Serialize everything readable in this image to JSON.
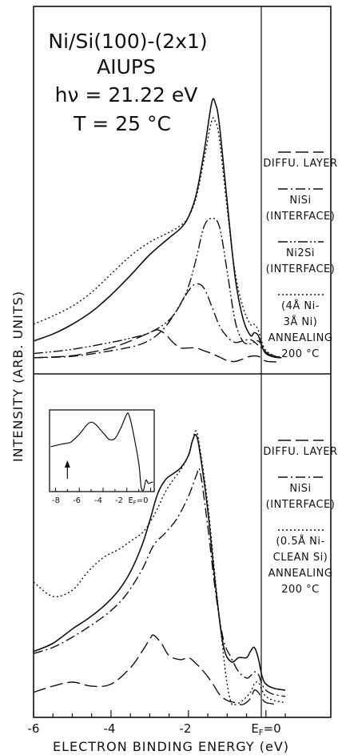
{
  "chart_data": [
    {
      "type": "line",
      "panel": "top",
      "title_lines": [
        "Ni/Si(100)-(2x1)",
        "AIUPS",
        "hν = 21.22 eV",
        "T = 25 °C"
      ],
      "legend": [
        {
          "dash": "long-dash",
          "lines": [
            "DIFFU. LAYER"
          ]
        },
        {
          "dash": "dash-dot",
          "lines": [
            "NiSi",
            "(INTERFACE)"
          ]
        },
        {
          "dash": "dash-dot-dot",
          "lines": [
            "Ni2Si",
            "(INTERFACE)"
          ]
        },
        {
          "dash": "dotted",
          "lines": [
            "(4Å Ni-",
            "3Å Ni)",
            "ANNEALING",
            "200 °C"
          ]
        }
      ],
      "series": [
        {
          "style": "solid",
          "x": [
            -6.0,
            -5.5,
            -5.0,
            -4.5,
            -4.0,
            -3.5,
            -3.0,
            -2.5,
            -2.2,
            -2.0,
            -1.8,
            -1.6,
            -1.4,
            -1.3,
            -1.2,
            -1.0,
            -0.8,
            -0.6,
            -0.4,
            -0.3,
            -0.2,
            -0.1,
            0.0,
            0.2,
            0.4
          ],
          "y": [
            1.5,
            2.0,
            2.7,
            3.6,
            4.8,
            6.2,
            7.7,
            8.9,
            9.6,
            10.4,
            12.0,
            15.0,
            18.6,
            18.5,
            17.0,
            11.5,
            6.2,
            3.2,
            1.9,
            2.1,
            1.9,
            1.1,
            0.6,
            0.35,
            0.3
          ]
        },
        {
          "style": "dotted",
          "x": [
            -6.0,
            -5.5,
            -5.0,
            -4.5,
            -4.0,
            -3.5,
            -3.0,
            -2.5,
            -2.2,
            -2.0,
            -1.8,
            -1.6,
            -1.4,
            -1.3,
            -1.2,
            -1.0,
            -0.8,
            -0.6,
            -0.4,
            -0.3,
            -0.2,
            -0.1,
            0.0,
            0.2,
            0.4
          ],
          "y": [
            2.7,
            3.3,
            4.0,
            5.0,
            6.3,
            7.6,
            8.6,
            9.3,
            9.8,
            10.4,
            11.8,
            14.5,
            17.3,
            17.2,
            16.0,
            11.0,
            6.5,
            4.0,
            2.7,
            2.7,
            2.3,
            1.4,
            0.8,
            0.45,
            0.35
          ]
        },
        {
          "style": "dash-dot",
          "x": [
            -6.0,
            -5.0,
            -4.0,
            -3.2,
            -2.7,
            -2.3,
            -2.0,
            -1.8,
            -1.6,
            -1.4,
            -1.2,
            -1.0,
            -0.8,
            -0.6,
            -0.4,
            -0.2,
            0.0,
            0.2,
            0.4
          ],
          "y": [
            0.3,
            0.4,
            0.8,
            1.3,
            2.2,
            3.7,
            5.1,
            5.6,
            5.3,
            4.0,
            2.6,
            1.8,
            1.4,
            1.5,
            1.6,
            1.2,
            0.7,
            0.4,
            0.3
          ]
        },
        {
          "style": "dash-dot-dot",
          "x": [
            -6.0,
            -5.0,
            -4.0,
            -3.5,
            -3.0,
            -2.5,
            -2.2,
            -2.0,
            -1.8,
            -1.6,
            -1.4,
            -1.2,
            -1.0,
            -0.8,
            -0.6,
            -0.4,
            -0.2,
            0.0,
            0.2,
            0.4
          ],
          "y": [
            0.6,
            0.9,
            1.4,
            1.7,
            2.1,
            3.0,
            4.2,
            5.4,
            7.4,
            9.7,
            10.3,
            9.7,
            6.5,
            3.0,
            1.5,
            1.3,
            1.5,
            0.8,
            0.45,
            0.3
          ]
        },
        {
          "style": "long-dash",
          "x": [
            -6.0,
            -5.5,
            -5.0,
            -4.5,
            -4.0,
            -3.5,
            -3.0,
            -2.8,
            -2.6,
            -2.4,
            -2.2,
            -2.0,
            -1.8,
            -1.6,
            -1.4,
            -1.2,
            -1.0,
            -0.8,
            -0.6,
            -0.4,
            -0.2,
            0.0,
            0.3
          ],
          "y": [
            0.3,
            0.35,
            0.45,
            0.7,
            1.0,
            1.5,
            2.1,
            2.3,
            2.0,
            1.4,
            1.0,
            1.0,
            1.0,
            0.8,
            0.6,
            0.35,
            0.1,
            0.03,
            0.2,
            0.4,
            0.4,
            0.05,
            0.0
          ]
        }
      ]
    },
    {
      "type": "line",
      "panel": "bottom",
      "legend": [
        {
          "dash": "long-dash",
          "lines": [
            "DIFFU. LAYER"
          ]
        },
        {
          "dash": "dash-dot",
          "lines": [
            "NiSi",
            "(INTERFACE)"
          ]
        },
        {
          "dash": "dotted",
          "lines": [
            "(0.5Å Ni-",
            "CLEAN Si)",
            "ANNEALING",
            "200 °C"
          ]
        }
      ],
      "inset": {
        "x_tick_labels": [
          "-8",
          "-6",
          "-4",
          "-2",
          "E",
          "F",
          "=0"
        ],
        "x": [
          -8.4,
          -7.5,
          -6.8,
          -6.5,
          -6.0,
          -5.0,
          -4.0,
          -3.5,
          -3.0,
          -2.5,
          -2.0,
          -1.8,
          -1.5,
          -1.0,
          -0.8,
          -0.6,
          -0.4,
          -0.2,
          0.0,
          0.2
        ],
        "y": [
          0.55,
          0.58,
          0.6,
          0.63,
          0.7,
          0.85,
          0.72,
          0.64,
          0.65,
          0.78,
          0.95,
          0.93,
          0.75,
          0.35,
          0.06,
          0.02,
          0.14,
          0.1,
          0.11,
          0.12
        ],
        "arrow_at_x": -7.0
      },
      "series": [
        {
          "style": "solid",
          "x": [
            -6.0,
            -5.5,
            -5.0,
            -4.6,
            -4.2,
            -3.8,
            -3.5,
            -3.2,
            -3.0,
            -2.8,
            -2.6,
            -2.4,
            -2.2,
            -2.0,
            -1.9,
            -1.8,
            -1.7,
            -1.5,
            -1.3,
            -1.1,
            -0.9,
            -0.7,
            -0.5,
            -0.4,
            -0.3,
            -0.2,
            -0.1,
            0.0,
            0.2,
            0.5
          ],
          "y": [
            2.6,
            3.0,
            3.7,
            4.2,
            4.8,
            5.6,
            6.5,
            7.8,
            9.0,
            10.3,
            11.0,
            11.3,
            11.6,
            12.2,
            12.9,
            13.2,
            12.3,
            9.5,
            5.8,
            2.9,
            2.1,
            2.3,
            2.3,
            2.6,
            2.8,
            2.3,
            1.4,
            1.0,
            0.8,
            0.7
          ]
        },
        {
          "style": "dotted",
          "x": [
            -6.0,
            -5.5,
            -5.0,
            -4.6,
            -4.2,
            -3.8,
            -3.5,
            -3.2,
            -3.0,
            -2.8,
            -2.6,
            -2.4,
            -2.2,
            -2.0,
            -1.9,
            -1.8,
            -1.7,
            -1.5,
            -1.3,
            -1.1,
            -1.0,
            -0.9,
            -0.8,
            -0.6,
            -0.4,
            -0.3,
            -0.2,
            -0.1,
            0.0,
            0.2,
            0.5
          ],
          "y": [
            6.0,
            5.3,
            5.6,
            6.5,
            7.2,
            7.6,
            8.0,
            8.4,
            8.9,
            9.6,
            10.4,
            11.0,
            11.5,
            12.2,
            12.9,
            13.4,
            12.5,
            9.8,
            6.0,
            2.5,
            1.0,
            0.1,
            0.0,
            0.2,
            0.6,
            1.0,
            1.1,
            0.7,
            0.4,
            0.2,
            0.1
          ]
        },
        {
          "style": "dash-dot",
          "x": [
            -6.0,
            -5.5,
            -5.0,
            -4.5,
            -4.0,
            -3.6,
            -3.2,
            -2.9,
            -2.6,
            -2.3,
            -2.0,
            -1.8,
            -1.7,
            -1.5,
            -1.3,
            -1.1,
            -0.9,
            -0.7,
            -0.5,
            -0.4,
            -0.3,
            -0.2,
            -0.1,
            0.0,
            0.2,
            0.5
          ],
          "y": [
            2.5,
            2.8,
            3.3,
            3.9,
            4.6,
            5.4,
            6.6,
            7.8,
            8.4,
            9.1,
            10.2,
            11.2,
            11.4,
            8.7,
            5.5,
            3.2,
            2.3,
            1.6,
            1.3,
            1.4,
            1.6,
            1.5,
            1.0,
            0.7,
            0.5,
            0.4
          ]
        },
        {
          "style": "long-dash",
          "x": [
            -6.0,
            -5.5,
            -5.0,
            -4.5,
            -4.0,
            -3.5,
            -3.2,
            -3.0,
            -2.9,
            -2.7,
            -2.5,
            -2.2,
            -2.0,
            -1.8,
            -1.6,
            -1.4,
            -1.2,
            -1.0,
            -0.8,
            -0.6,
            -0.4,
            -0.3,
            -0.2,
            -0.1,
            0.0,
            0.3
          ],
          "y": [
            0.6,
            0.9,
            1.1,
            0.9,
            1.0,
            1.8,
            2.6,
            3.2,
            3.4,
            3.0,
            2.4,
            2.2,
            2.3,
            2.0,
            1.6,
            1.1,
            0.5,
            0.2,
            0.1,
            0.0,
            0.3,
            0.7,
            0.6,
            0.3,
            0.1,
            0.0
          ]
        }
      ]
    }
  ],
  "axis": {
    "xlabel": "ELECTRON BINDING ENERGY (eV)",
    "ylabel": "INTENSITY (ARB. UNITS)",
    "x_tick_labels": [
      "-6",
      "-4",
      "-2",
      "E",
      "F",
      "=0"
    ],
    "xlim": [
      -6,
      0.5
    ]
  }
}
